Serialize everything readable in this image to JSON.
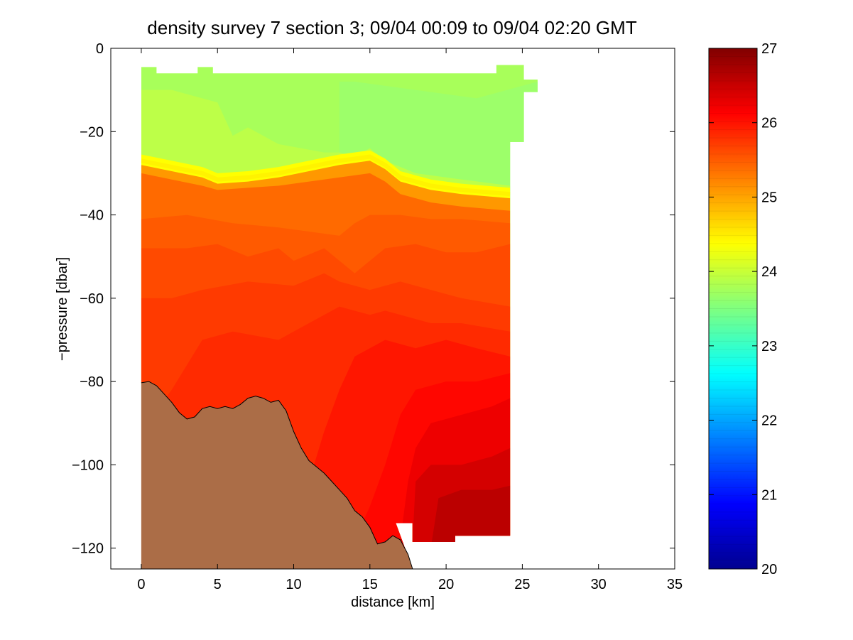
{
  "chart_data": {
    "type": "heatmap",
    "title": "density survey 7 section 3; 09/04 00:09 to 09/04 02:20 GMT",
    "xlabel": "distance [km]",
    "ylabel": "−pressure [dbar]",
    "xlim": [
      -2,
      35
    ],
    "ylim": [
      -125,
      0
    ],
    "xticks": [
      0,
      5,
      10,
      15,
      20,
      25,
      30,
      35
    ],
    "xtick_labels": [
      "0",
      "5",
      "10",
      "15",
      "20",
      "25",
      "30",
      "35"
    ],
    "yticks": [
      0,
      -20,
      -40,
      -60,
      -80,
      -100,
      -120
    ],
    "ytick_labels": [
      "0",
      "−20",
      "−40",
      "−60",
      "−80",
      "−100",
      "−120"
    ],
    "colorbar": {
      "range": [
        20,
        27
      ],
      "ticks": [
        20,
        21,
        22,
        23,
        24,
        25,
        26,
        27
      ],
      "tick_labels": [
        "20",
        "21",
        "22",
        "23",
        "24",
        "25",
        "26",
        "27"
      ],
      "colormap": "jet"
    },
    "data_extent_outline": [
      [
        0,
        -4.5
      ],
      [
        1,
        -4.5
      ],
      [
        1,
        -6
      ],
      [
        3.7,
        -6
      ],
      [
        3.7,
        -4.5
      ],
      [
        4.7,
        -4.5
      ],
      [
        4.7,
        -6
      ],
      [
        23.3,
        -6
      ],
      [
        23.3,
        -1.5
      ],
      [
        25.1,
        -1.5
      ],
      [
        25.1,
        -7.5
      ],
      [
        26.1,
        -7.5
      ],
      [
        26.1,
        -10.5
      ],
      [
        25.1,
        -10.5
      ],
      [
        25.1,
        -22.5
      ],
      [
        24.2,
        -22.5
      ],
      [
        24.2,
        -117
      ],
      [
        20.6,
        -117
      ],
      [
        20.6,
        -118.5
      ],
      [
        17.8,
        -118.5
      ],
      [
        17.8,
        -114
      ],
      [
        16.7,
        -114
      ]
    ],
    "pycnocline_24_5": [
      [
        0,
        -27
      ],
      [
        2,
        -28.5
      ],
      [
        4,
        -30
      ],
      [
        5,
        -31.5
      ],
      [
        7,
        -31
      ],
      [
        9,
        -30
      ],
      [
        11,
        -28.5
      ],
      [
        13,
        -27
      ],
      [
        15,
        -26
      ],
      [
        16,
        -28
      ],
      [
        17,
        -31
      ],
      [
        19,
        -33
      ],
      [
        21,
        -34
      ],
      [
        24.2,
        -35
      ]
    ],
    "density_levels": [
      {
        "sigma": 23.6,
        "color": "#a8ff5a",
        "upper": [
          [
            0,
            -4
          ],
          [
            26,
            -4
          ]
        ]
      },
      {
        "sigma": 23.8,
        "color": "#9dff6a",
        "upper": [
          [
            13,
            -8
          ],
          [
            14,
            -8
          ],
          [
            22,
            -12
          ],
          [
            26,
            -8
          ]
        ]
      },
      {
        "sigma": 24.2,
        "color": "#bdff48",
        "upper": [
          [
            0,
            -10
          ],
          [
            2,
            -10
          ],
          [
            4,
            -12
          ],
          [
            5,
            -13
          ],
          [
            6,
            -21
          ],
          [
            7,
            -19
          ],
          [
            9,
            -23
          ],
          [
            12,
            -25
          ],
          [
            13,
            -25
          ],
          [
            14,
            -26
          ],
          [
            15,
            -24
          ],
          [
            16,
            -27
          ],
          [
            18,
            -30
          ],
          [
            20,
            -31
          ],
          [
            24.2,
            -33
          ]
        ]
      },
      {
        "sigma": 24.6,
        "color": "#ffff00",
        "upper": [
          [
            0,
            -25.5
          ],
          [
            2,
            -27
          ],
          [
            4,
            -28.5
          ],
          [
            5,
            -30
          ],
          [
            7,
            -29.5
          ],
          [
            9,
            -28.5
          ],
          [
            11,
            -27
          ],
          [
            13,
            -25.5
          ],
          [
            15,
            -24.5
          ],
          [
            16,
            -26.5
          ],
          [
            17,
            -29.5
          ],
          [
            19,
            -31.5
          ],
          [
            21,
            -32.5
          ],
          [
            24.2,
            -33.5
          ]
        ]
      },
      {
        "sigma": 25.2,
        "color": "#ff9800",
        "upper": [
          [
            0,
            -28
          ],
          [
            2,
            -29.5
          ],
          [
            4,
            -31
          ],
          [
            5,
            -32.5
          ],
          [
            7,
            -32
          ],
          [
            9,
            -31
          ],
          [
            11,
            -29.5
          ],
          [
            13,
            -28
          ],
          [
            15,
            -27
          ],
          [
            16,
            -29
          ],
          [
            17,
            -32
          ],
          [
            19,
            -34
          ],
          [
            21,
            -35
          ],
          [
            24.2,
            -36
          ]
        ]
      },
      {
        "sigma": 25.5,
        "color": "#ff6a00",
        "upper": [
          [
            0,
            -30
          ],
          [
            2,
            -31.5
          ],
          [
            4,
            -33
          ],
          [
            5,
            -34
          ],
          [
            7,
            -33.5
          ],
          [
            9,
            -33
          ],
          [
            11,
            -32
          ],
          [
            13,
            -31
          ],
          [
            15,
            -30
          ],
          [
            16,
            -32
          ],
          [
            17,
            -35
          ],
          [
            19,
            -37
          ],
          [
            21,
            -38
          ],
          [
            24.2,
            -39
          ]
        ]
      },
      {
        "sigma": 25.7,
        "color": "#ff5a00",
        "upper": [
          [
            0,
            -41
          ],
          [
            3,
            -40
          ],
          [
            6,
            -42
          ],
          [
            9,
            -43
          ],
          [
            11,
            -44
          ],
          [
            13,
            -45
          ],
          [
            14,
            -42
          ],
          [
            15,
            -40
          ],
          [
            17,
            -40
          ],
          [
            19,
            -41
          ],
          [
            21,
            -41
          ],
          [
            24.2,
            -42
          ]
        ]
      },
      {
        "sigma": 25.8,
        "color": "#ff4a00",
        "upper": [
          [
            0,
            -48
          ],
          [
            3,
            -48
          ],
          [
            5,
            -47
          ],
          [
            7,
            -50
          ],
          [
            9,
            -48
          ],
          [
            10,
            -51
          ],
          [
            12,
            -48
          ],
          [
            13,
            -51
          ],
          [
            14,
            -54
          ],
          [
            15,
            -51
          ],
          [
            16,
            -48
          ],
          [
            18,
            -47
          ],
          [
            20,
            -49
          ],
          [
            22,
            -49
          ],
          [
            24.2,
            -47
          ]
        ]
      },
      {
        "sigma": 25.9,
        "color": "#ff3a00",
        "upper": [
          [
            0,
            -60
          ],
          [
            2,
            -60
          ],
          [
            4,
            -58
          ],
          [
            7,
            -56
          ],
          [
            10,
            -57
          ],
          [
            12,
            -54
          ],
          [
            13,
            -56
          ],
          [
            15,
            -58
          ],
          [
            17,
            -56
          ],
          [
            19,
            -58
          ],
          [
            21,
            -60
          ],
          [
            24.2,
            -62
          ]
        ]
      },
      {
        "sigma": 26.0,
        "color": "#ff2a00",
        "upper": [
          [
            0,
            -92
          ],
          [
            2,
            -82
          ],
          [
            4,
            -70
          ],
          [
            6,
            -68
          ],
          [
            9,
            -70
          ],
          [
            11,
            -66
          ],
          [
            13,
            -62
          ],
          [
            15,
            -64
          ],
          [
            16,
            -63
          ],
          [
            17,
            -64
          ],
          [
            19,
            -66
          ],
          [
            21,
            -66
          ],
          [
            24.2,
            -68
          ]
        ]
      },
      {
        "sigma": 26.1,
        "color": "#ff1600",
        "upper": [
          [
            10,
            -118
          ],
          [
            11,
            -104
          ],
          [
            12,
            -92
          ],
          [
            13,
            -82
          ],
          [
            14,
            -74
          ],
          [
            16,
            -70
          ],
          [
            18,
            -72
          ],
          [
            20,
            -70
          ],
          [
            22,
            -72
          ],
          [
            24.2,
            -74
          ]
        ]
      },
      {
        "sigma": 26.2,
        "color": "#ff0600",
        "upper": [
          [
            14,
            -118
          ],
          [
            15,
            -110
          ],
          [
            16,
            -100
          ],
          [
            17,
            -88
          ],
          [
            18,
            -82
          ],
          [
            20,
            -80
          ],
          [
            22,
            -80
          ],
          [
            24.2,
            -78
          ]
        ]
      },
      {
        "sigma": 26.3,
        "color": "#ee0000",
        "upper": [
          [
            17,
            -118
          ],
          [
            17.5,
            -104
          ],
          [
            18,
            -96
          ],
          [
            19,
            -90
          ],
          [
            21,
            -88
          ],
          [
            23,
            -86
          ],
          [
            24.2,
            -84
          ]
        ]
      },
      {
        "sigma": 26.5,
        "color": "#d40000",
        "upper": [
          [
            17.8,
            -118
          ],
          [
            18,
            -104
          ],
          [
            19,
            -100
          ],
          [
            21,
            -100
          ],
          [
            23,
            -98
          ],
          [
            24.2,
            -96
          ]
        ]
      },
      {
        "sigma": 26.7,
        "color": "#bb0000",
        "upper": [
          [
            19,
            -120
          ],
          [
            19.5,
            -108
          ],
          [
            21,
            -106
          ],
          [
            23,
            -106
          ],
          [
            24.2,
            -105
          ]
        ]
      }
    ],
    "bathymetry": {
      "fill_color": "#ab6d47",
      "profile": [
        [
          0,
          -80.3
        ],
        [
          0.5,
          -80
        ],
        [
          1,
          -81
        ],
        [
          1.5,
          -83
        ],
        [
          2,
          -85
        ],
        [
          2.5,
          -87.5
        ],
        [
          3,
          -89
        ],
        [
          3.5,
          -88.5
        ],
        [
          4,
          -86.5
        ],
        [
          4.5,
          -86
        ],
        [
          5,
          -86.5
        ],
        [
          5.5,
          -86
        ],
        [
          6,
          -86.5
        ],
        [
          6.5,
          -85.5
        ],
        [
          7,
          -84
        ],
        [
          7.5,
          -83.5
        ],
        [
          8,
          -84
        ],
        [
          8.5,
          -85
        ],
        [
          9,
          -84.5
        ],
        [
          9.5,
          -87
        ],
        [
          10,
          -92
        ],
        [
          10.5,
          -96
        ],
        [
          11,
          -99
        ],
        [
          11.5,
          -100.5
        ],
        [
          12,
          -102
        ],
        [
          12.5,
          -104
        ],
        [
          13,
          -106
        ],
        [
          13.5,
          -108
        ],
        [
          14,
          -111
        ],
        [
          14.5,
          -112.5
        ],
        [
          15,
          -115
        ],
        [
          15.5,
          -119
        ],
        [
          16,
          -118.5
        ],
        [
          16.5,
          -117
        ],
        [
          17,
          -118
        ],
        [
          17.5,
          -121.5
        ],
        [
          17.8,
          -125
        ]
      ]
    }
  }
}
